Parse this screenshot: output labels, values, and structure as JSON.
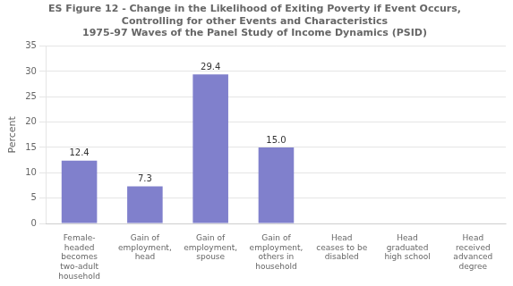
{
  "chart_data": {
    "type": "bar",
    "title": "ES Figure 12 - Change in the Likelihood of Exiting Poverty if Event Occurs,\nControlling for other Events and Characteristics\n1975-97 Waves of the Panel Study of Income Dynamics (PSID)",
    "categories": [
      "Female-\nheaded\nbecomes\ntwo-adult\nhousehold",
      "Gain of\nemployment,\nhead",
      "Gain of\nemployment,\nspouse",
      "Gain of\nemployment,\nothers in\nhousehold",
      "Head\nceases to be\ndisabled",
      "Head\ngraduated\nhigh school",
      "Head\nreceived\nadvanced\ndegree"
    ],
    "values": [
      12.4,
      7.3,
      29.4,
      15.0,
      0.0,
      0.0,
      0.0
    ],
    "value_labels": [
      "12.4",
      "7.3",
      "29.4",
      "15.0",
      null,
      null,
      null
    ],
    "data_labels": true,
    "color": "#8080cc",
    "ylabel": "Percent",
    "ylim": [
      0,
      35
    ],
    "yticks": [
      0,
      5,
      10,
      15,
      20,
      25,
      30,
      35
    ],
    "grid": true
  }
}
